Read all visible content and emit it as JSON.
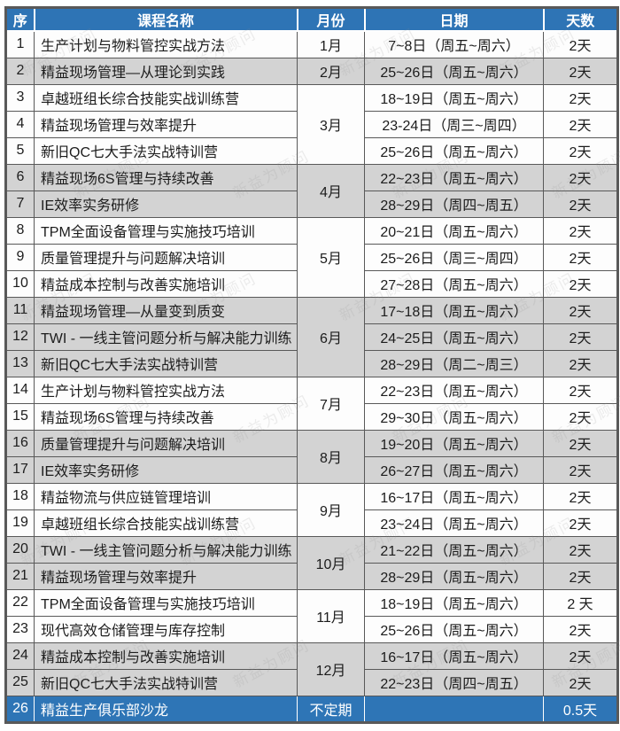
{
  "watermark": {
    "text": "新益为顾问"
  },
  "colors": {
    "header_bg": "#2e74b5",
    "row_white": "#fdfdfd",
    "row_gray": "#d3d3d3",
    "highlight_row_bg": "#2e75b6",
    "grid_line": "#595959",
    "header_text": "#ffffff",
    "body_text": "#1c1c1c"
  },
  "table": {
    "columns": [
      "序",
      "课程名称",
      "月份",
      "日期",
      "天数"
    ],
    "rows": [
      {
        "num": 1,
        "course": "生产计划与物料管控实战方法",
        "month": "1月",
        "span": 1,
        "date": "7~8日（周五~周六）",
        "days": "2天",
        "band": "white"
      },
      {
        "num": 2,
        "course": "精益现场管理—从理论到实践",
        "month": "2月",
        "span": 1,
        "date": "25~26日（周五~周六）",
        "days": "2天",
        "band": "gray"
      },
      {
        "num": 3,
        "course": "卓越班组长综合技能实战训练营",
        "month": "3月",
        "span": 3,
        "date": "18~19日（周五~周六）",
        "days": "2天",
        "band": "white"
      },
      {
        "num": 4,
        "course": "精益现场管理与效率提升",
        "month": null,
        "span": 0,
        "date": "23-24日（周三~周四）",
        "days": "2天",
        "band": "white"
      },
      {
        "num": 5,
        "course": "新旧QC七大手法实战特训营",
        "month": null,
        "span": 0,
        "date": "25~26日（周五~周六）",
        "days": "2天",
        "band": "white"
      },
      {
        "num": 6,
        "course": "精益现场6S管理与持续改善",
        "month": "4月",
        "span": 2,
        "date": "22~23日（周五~周六）",
        "days": "2天",
        "band": "gray"
      },
      {
        "num": 7,
        "course": "IE效率实务研修",
        "month": null,
        "span": 0,
        "date": "28~29日（周四~周五）",
        "days": "2天",
        "band": "gray"
      },
      {
        "num": 8,
        "course": "TPM全面设备管理与实施技巧培训",
        "month": "5月",
        "span": 3,
        "date": "20~21日（周五~周六）",
        "days": "2天",
        "band": "white"
      },
      {
        "num": 9,
        "course": "质量管理提升与问题解决培训",
        "month": null,
        "span": 0,
        "date": "25~26日（周三~周四）",
        "days": "2天",
        "band": "white"
      },
      {
        "num": 10,
        "course": "精益成本控制与改善实施培训",
        "month": null,
        "span": 0,
        "date": "27~28日（周五~周六）",
        "days": "2天",
        "band": "white"
      },
      {
        "num": 11,
        "course": "精益现场管理—从量变到质变",
        "month": "6月",
        "span": 3,
        "date": "17~18日（周五~周六）",
        "days": "2天",
        "band": "gray"
      },
      {
        "num": 12,
        "course": "TWI - 一线主管问题分析与解决能力训练",
        "month": null,
        "span": 0,
        "date": "24~25日（周五~周六）",
        "days": "2天",
        "band": "gray"
      },
      {
        "num": 13,
        "course": "新旧QC七大手法实战特训营",
        "month": null,
        "span": 0,
        "date": "28~29日（周二~周三）",
        "days": "2天",
        "band": "gray"
      },
      {
        "num": 14,
        "course": "生产计划与物料管控实战方法",
        "month": "7月",
        "span": 2,
        "date": "22~23日（周五~周六）",
        "days": "2天",
        "band": "white"
      },
      {
        "num": 15,
        "course": "精益现场6S管理与持续改善",
        "month": null,
        "span": 0,
        "date": "29~30日（周五~周六）",
        "days": "2天",
        "band": "white"
      },
      {
        "num": 16,
        "course": "质量管理提升与问题解决培训",
        "month": "8月",
        "span": 2,
        "date": "19~20日（周五~周六）",
        "days": "2天",
        "band": "gray"
      },
      {
        "num": 17,
        "course": "IE效率实务研修",
        "month": null,
        "span": 0,
        "date": "26~27日（周五~周六）",
        "days": "2天",
        "band": "gray"
      },
      {
        "num": 18,
        "course": "精益物流与供应链管理培训",
        "month": "9月",
        "span": 2,
        "date": "16~17日（周五~周六）",
        "days": "2天",
        "band": "white"
      },
      {
        "num": 19,
        "course": "卓越班组长综合技能实战训练营",
        "month": null,
        "span": 0,
        "date": "23~24日（周五~周六）",
        "days": "2天",
        "band": "white"
      },
      {
        "num": 20,
        "course": "TWI - 一线主管问题分析与解决能力训练",
        "month": "10月",
        "span": 2,
        "date": "21~22日（周五~周六）",
        "days": "2天",
        "band": "gray"
      },
      {
        "num": 21,
        "course": "精益现场管理与效率提升",
        "month": null,
        "span": 0,
        "date": "28~29日（周五~周六）",
        "days": "2天",
        "band": "gray"
      },
      {
        "num": 22,
        "course": "TPM全面设备管理与实施技巧培训",
        "month": "11月",
        "span": 2,
        "date": "18~19日（周五~周六）",
        "days": "2 天",
        "band": "white"
      },
      {
        "num": 23,
        "course": "现代高效仓储管理与库存控制",
        "month": null,
        "span": 0,
        "date": "25~26日（周五~周六）",
        "days": "2天",
        "band": "white"
      },
      {
        "num": 24,
        "course": "精益成本控制与改善实施培训",
        "month": "12月",
        "span": 2,
        "date": "16~17日（周五~周六）",
        "days": "2天",
        "band": "gray"
      },
      {
        "num": 25,
        "course": "新旧QC七大手法实战特训营",
        "month": null,
        "span": 0,
        "date": "22~23日（周四~周五）",
        "days": "2天",
        "band": "gray"
      },
      {
        "num": 26,
        "course": "精益生产俱乐部沙龙",
        "month": "不定期",
        "span": 1,
        "date": "",
        "days": "0.5天",
        "band": "blue"
      }
    ]
  }
}
